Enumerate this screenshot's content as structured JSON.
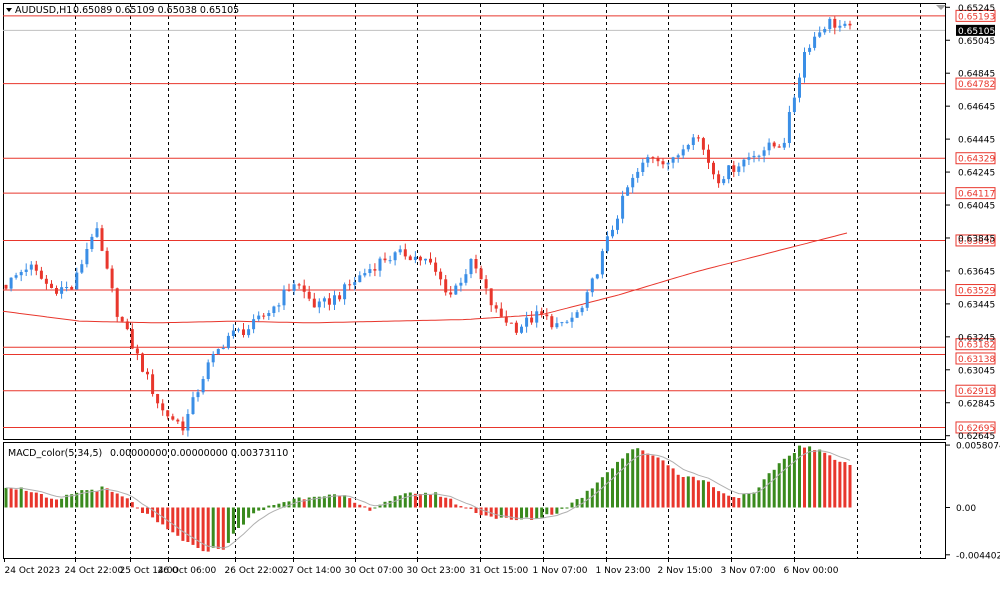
{
  "chart_header": {
    "symbol_timeframe": "AUDUSD,H1",
    "ohlc": "0.65089 0.65109 0.65038 0.65105",
    "dropdown_icon": "triangle-down-icon"
  },
  "indicator_header": {
    "name": "MACD_color(5,34,5)",
    "values": "0.00000000 0.00000000 0.00373110"
  },
  "colors": {
    "bull": "#3a8ee6",
    "bear": "#e8362c",
    "level_line": "#e8362c",
    "ma_line": "#e8362c",
    "hist_up": "#3a8a1e",
    "hist_down": "#e8362c",
    "signal_line": "#b0b0b0",
    "grid": "#000000",
    "current_price_label_bg": "#000000"
  },
  "chart_data": [
    {
      "type": "candlestick",
      "title": "",
      "y_ticks": [
        "0.65245",
        "0.65045",
        "0.64845",
        "0.64645",
        "0.64445",
        "0.64245",
        "0.64045",
        "0.63845",
        "0.63645",
        "0.63445",
        "0.63245",
        "0.63045",
        "0.62845",
        "0.62645"
      ],
      "ylim": [
        0.62625,
        0.65265
      ],
      "x_tick_labels": [
        "24 Oct 2023",
        "24 Oct 22:00",
        "25 Oct 14:00",
        "26 Oct 06:00",
        "26 Oct 22:00",
        "27 Oct 14:00",
        "30 Oct 07:00",
        "30 Oct 23:00",
        "31 Oct 15:00",
        "1 Nov 07:00",
        "1 Nov 23:00",
        "2 Nov 15:00",
        "3 Nov 07:00",
        "6 Nov 00:00"
      ],
      "levels": [
        {
          "value": 0.65193,
          "label": "0.65193"
        },
        {
          "value": 0.64782,
          "label": "0.64782"
        },
        {
          "value": 0.64329,
          "label": "0.64329"
        },
        {
          "value": 0.64117,
          "label": "0.64117"
        },
        {
          "value": 0.6383,
          "label": "0.63830"
        },
        {
          "value": 0.63529,
          "label": "0.63529"
        },
        {
          "value": 0.63182,
          "label": "0.63182"
        },
        {
          "value": 0.63138,
          "label": "0.63138"
        },
        {
          "value": 0.62918,
          "label": "0.62918"
        },
        {
          "value": 0.62695,
          "label": "0.62695"
        }
      ],
      "current_price": {
        "value": 0.65105,
        "label": "0.65105"
      },
      "moving_average_keypoints": [
        0.634,
        0.6334,
        0.6333,
        0.6334,
        0.6333,
        0.6334,
        0.6335,
        0.6338,
        0.635,
        0.6364,
        0.6376,
        0.6388
      ],
      "close_keypoints": [
        0.6356,
        0.6368,
        0.6354,
        0.6354,
        0.6392,
        0.634,
        0.631,
        0.628,
        0.627,
        0.6305,
        0.6325,
        0.633,
        0.6342,
        0.6358,
        0.6342,
        0.635,
        0.6362,
        0.6372,
        0.6375,
        0.637,
        0.635,
        0.637,
        0.634,
        0.633,
        0.6338,
        0.633,
        0.6342,
        0.638,
        0.6415,
        0.6435,
        0.643,
        0.645,
        0.642,
        0.643,
        0.6438,
        0.6442,
        0.65,
        0.6516,
        0.65105
      ]
    },
    {
      "type": "histogram",
      "title": "MACD_color(5,34,5)",
      "y_ticks": [
        "0.0058074",
        "0.00",
        "-0.004402"
      ],
      "ylim": [
        -0.0047,
        0.006
      ],
      "histogram_keypoints": [
        0.002,
        0.0016,
        0.0005,
        0.0015,
        0.0018,
        0.0008,
        -0.001,
        -0.0025,
        -0.004,
        -0.0038,
        -0.001,
        0.0002,
        0.0008,
        0.0012,
        0.001,
        -0.0002,
        0.0008,
        0.0014,
        0.0012,
        0.0,
        -0.0008,
        -0.0012,
        -0.001,
        -0.0003,
        0.0012,
        0.0035,
        0.0055,
        0.0048,
        0.003,
        0.0025,
        0.001,
        0.0012,
        0.004,
        0.0058,
        0.005,
        0.004
      ]
    }
  ]
}
